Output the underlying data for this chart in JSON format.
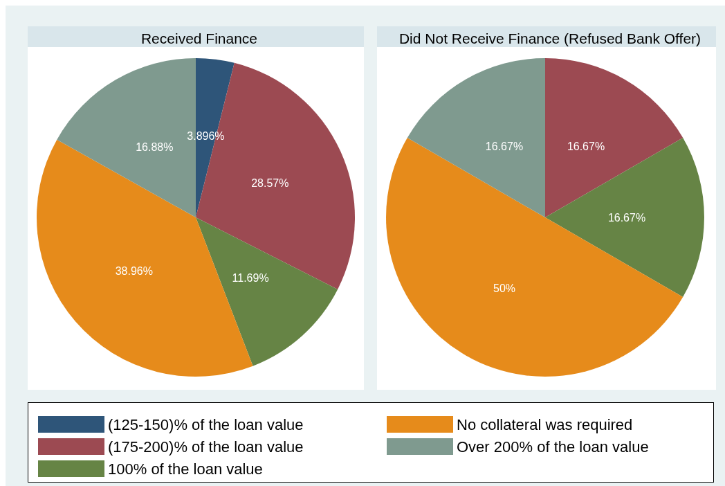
{
  "chart_data": [
    {
      "type": "pie",
      "title": "Received Finance",
      "categories": [
        "(125-150)% of the loan value",
        "(175-200)% of the loan value",
        "100% of the loan value",
        "No collateral was required",
        "Over 200% of the loan value"
      ],
      "values": [
        3.896,
        28.57,
        11.69,
        38.96,
        16.88
      ],
      "value_labels": [
        "3.896%",
        "28.57%",
        "11.69%",
        "38.96%",
        "16.88%"
      ],
      "colors": [
        "#2e5579",
        "#9c4a52",
        "#668445",
        "#e68b1b",
        "#7f9a8f"
      ],
      "legend": "bottom"
    },
    {
      "type": "pie",
      "title": "Did Not Receive Finance (Refused Bank Offer)",
      "categories": [
        null,
        null,
        null,
        null
      ],
      "values": [
        16.67,
        16.67,
        50,
        16.67
      ],
      "value_labels": [
        "16.67%",
        "16.67%",
        "50%",
        "16.67%"
      ],
      "colors": [
        "#9c4a52",
        "#668445",
        "#e68b1b",
        "#7f9a8f"
      ]
    }
  ]
}
